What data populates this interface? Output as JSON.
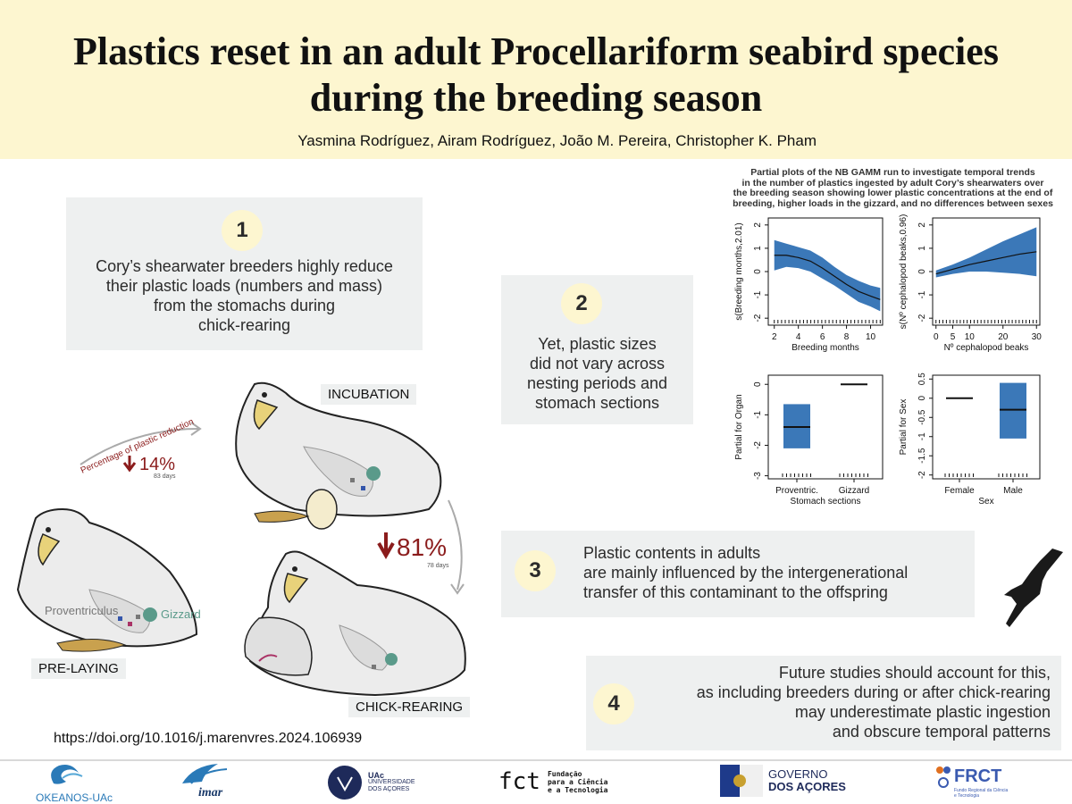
{
  "header": {
    "title_line1": "Plastics reset in an adult Procellariform seabird species",
    "title_line2": "during the breeding season",
    "authors": "Yasmina Rodríguez, Airam Rodríguez, João M. Pereira, Christopher K. Pham"
  },
  "findings": [
    {
      "number": "1",
      "lines": [
        "Cory’s shearwater breeders highly reduce",
        "their plastic loads (numbers and mass)",
        "from the stomachs during",
        "chick-rearing"
      ]
    },
    {
      "number": "2",
      "lines": [
        "Yet, plastic sizes",
        "did not vary across",
        "nesting periods and",
        "stomach sections"
      ]
    },
    {
      "number": "3",
      "lines": [
        "Plastic contents in adults",
        "are mainly influenced by the intergenerational",
        "transfer of this contaminant to the offspring"
      ]
    },
    {
      "number": "4",
      "lines": [
        "Future studies should account for this,",
        "as including breeders during or after chick-rearing",
        "may underestimate plastic ingestion",
        "and obscure temporal patterns"
      ]
    }
  ],
  "illustration": {
    "stage_prelaying": "PRE-LAYING",
    "stage_incubation": "INCUBATION",
    "stage_chickrearing": "CHICK-REARING",
    "proventriculus_label": "Proventriculus",
    "gizzard_label": "Gizzard",
    "arrow_label": "Percentage of plastic reduction",
    "reduction1_value": "14%",
    "reduction1_days": "83 days",
    "reduction2_value": "81%",
    "reduction2_days": "78 days",
    "colors": {
      "reduction": "#8b1c1c",
      "gizzard": "#5a9a8a"
    }
  },
  "doi": "https://doi.org/10.1016/j.marenvres.2024.106939",
  "chart_caption": [
    "Partial plots of the NB GAMM run to investigate temporal trends",
    "in the number of plastics ingested by adult Cory’s shearwaters over",
    "the breeding season showing lower plastic concentrations at the end of",
    "breeding, higher loads in the gizzard, and no differences between sexes"
  ],
  "chart_data": [
    {
      "type": "line",
      "xlabel": "Breeding months",
      "ylabel": "s(Breeding months,2.01)",
      "xlim": [
        1.5,
        11
      ],
      "ylim": [
        -2.3,
        2.3
      ],
      "xticks": [
        2,
        4,
        6,
        8,
        10
      ],
      "yticks": [
        -2,
        -1,
        0,
        1,
        2
      ],
      "x": [
        2,
        3,
        4,
        5,
        6,
        7,
        8,
        9,
        10,
        10.8
      ],
      "y": [
        0.7,
        0.7,
        0.6,
        0.45,
        0.15,
        -0.2,
        -0.55,
        -0.85,
        -1.05,
        -1.2
      ],
      "upper": [
        1.35,
        1.2,
        1.05,
        0.9,
        0.6,
        0.2,
        -0.15,
        -0.4,
        -0.6,
        -0.7
      ],
      "lower": [
        0.05,
        0.2,
        0.15,
        0.0,
        -0.3,
        -0.6,
        -0.95,
        -1.3,
        -1.5,
        -1.7
      ],
      "color": "#3b78b8"
    },
    {
      "type": "line",
      "xlabel": "Nº cephalopod beaks",
      "ylabel": "s(Nº cephalopod beaks,0.96)",
      "xlim": [
        -1,
        31
      ],
      "ylim": [
        -2.3,
        2.3
      ],
      "xticks": [
        0,
        5,
        10,
        20,
        30
      ],
      "yticks": [
        -2,
        -1,
        0,
        1,
        2
      ],
      "x": [
        0,
        5,
        10,
        15,
        20,
        25,
        30
      ],
      "y": [
        -0.1,
        0.1,
        0.3,
        0.45,
        0.6,
        0.75,
        0.85
      ],
      "upper": [
        0.05,
        0.3,
        0.6,
        0.95,
        1.3,
        1.6,
        1.9
      ],
      "lower": [
        -0.25,
        -0.1,
        0.0,
        0.0,
        -0.05,
        -0.1,
        -0.2
      ],
      "color": "#3b78b8"
    },
    {
      "type": "box",
      "xlabel": "Stomach sections",
      "ylabel": "Partial for Organ",
      "ylim": [
        -3.1,
        0.3
      ],
      "yticks": [
        -3,
        -2,
        -1,
        0
      ],
      "categories": [
        "Proventric.",
        "Gizzard"
      ],
      "center": [
        -1.4,
        0
      ],
      "upper": [
        -0.65,
        0
      ],
      "lower": [
        -2.1,
        0
      ],
      "color": "#3b78b8"
    },
    {
      "type": "box",
      "xlabel": "Sex",
      "ylabel": "Partial for Sex",
      "ylim": [
        -2.1,
        0.6
      ],
      "yticks": [
        -2.0,
        -1.5,
        -1.0,
        -0.5,
        0.0,
        0.5
      ],
      "categories": [
        "Female",
        "Male"
      ],
      "center": [
        0,
        -0.3
      ],
      "upper": [
        0,
        0.4
      ],
      "lower": [
        0,
        -1.05
      ],
      "color": "#3b78b8"
    }
  ],
  "footer": {
    "okeanos": "OKEANOS-UAc",
    "imar": "imar",
    "uac_short": "UAc",
    "uac_line1": "UNIVERSIDADE",
    "uac_line2": "DOS AÇORES",
    "fct_short": "fct",
    "fct_line1": "Fundação",
    "fct_line2": "para a Ciência",
    "fct_line3": "e a Tecnologia",
    "gov_line1": "GOVERNO",
    "gov_line2": "DOS AÇORES",
    "frct_short": "FRCT",
    "frct_line1": "Fundo Regional da Ciência",
    "frct_line2": "e Tecnologia"
  }
}
